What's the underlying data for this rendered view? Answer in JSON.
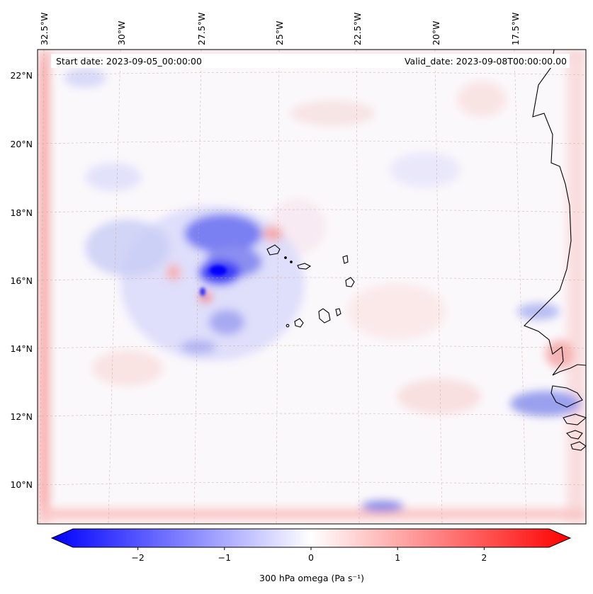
{
  "figure": {
    "start_date_text": "Start date: 2023-09-05_00:00:00",
    "valid_date_text": "Valid_date: 2023-09-08T00:00:00.00",
    "variable": "300 hPa omega",
    "units": "(Pa s⁻¹)",
    "colorbar_label": "300 hPa omega (Pa s⁻¹)"
  },
  "map": {
    "projection": "lambert-conformal",
    "lon_labels": [
      "32.5°W",
      "30°W",
      "27.5°W",
      "25°W",
      "22.5°W",
      "20°W",
      "17.5°W"
    ],
    "lat_labels": [
      "22°N",
      "20°N",
      "18°N",
      "16°N",
      "14°N",
      "12°N",
      "10°N"
    ],
    "features": [
      "cabo-verde-islands",
      "west-african-coastline",
      "tropical-cyclone-vortex"
    ]
  },
  "colorbar": {
    "min": -2.75,
    "max": 2.75,
    "ticks": [
      -2,
      -1,
      0,
      1,
      2
    ],
    "tick_labels": [
      "−2",
      "−1",
      "0",
      "1",
      "2"
    ],
    "extend": "both",
    "colormap": "bwr",
    "color_negative": "#0000ff",
    "color_zero": "#ffffff",
    "color_positive": "#ff0000"
  },
  "colors": {
    "coastline": "#000000",
    "gridline": "#c8a89a",
    "background": "#ffffff"
  }
}
